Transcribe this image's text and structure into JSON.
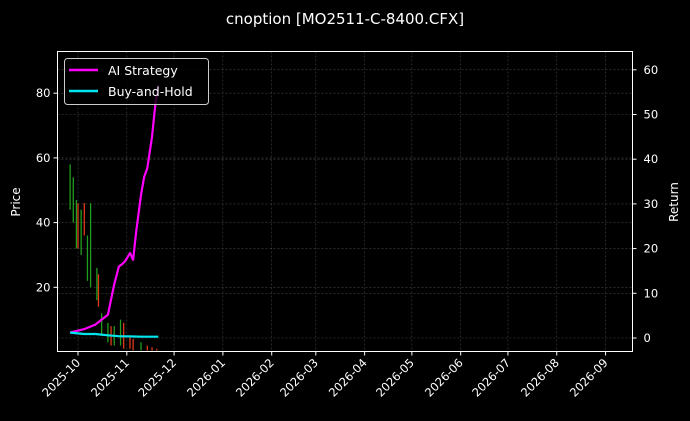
{
  "chart_data": {
    "type": "line",
    "title": "cnoption [MO2511-C-8400.CFX]",
    "xlabel": "",
    "ylabel": "Price",
    "ylabel_right": "Return",
    "x_ticks": [
      "2025-10",
      "2025-11",
      "2025-12",
      "2026-01",
      "2026-02",
      "2026-03",
      "2026-04",
      "2026-05",
      "2026-06",
      "2026-07",
      "2026-08",
      "2026-09"
    ],
    "y_ticks_left": [
      20,
      40,
      60,
      80
    ],
    "y_ticks_right": [
      0,
      10,
      20,
      30,
      40,
      50,
      60
    ],
    "ylim_left": [
      0,
      92
    ],
    "ylim_right": [
      -3,
      64
    ],
    "grid": true,
    "legend_position": "upper left",
    "legend": [
      "AI Strategy",
      "Buy-and-Hold"
    ],
    "colors": {
      "background": "#000000",
      "ai_strategy": "#ff00ff",
      "buy_and_hold": "#00e5ee",
      "candle_up": "#1f9e1f",
      "candle_down": "#e03a1a",
      "grid": "#444444",
      "axes": "#ffffff"
    },
    "series": [
      {
        "name": "AI Strategy",
        "axis": "right",
        "dates": [
          "2025-09-26",
          "2025-10-05",
          "2025-10-12",
          "2025-10-20",
          "2025-10-24",
          "2025-10-27",
          "2025-10-29",
          "2025-10-31",
          "2025-11-03",
          "2025-11-05",
          "2025-11-07",
          "2025-11-10",
          "2025-11-12",
          "2025-11-14",
          "2025-11-17",
          "2025-11-19",
          "2025-11-21"
        ],
        "values": [
          1.2,
          2.0,
          3.0,
          5.2,
          12.0,
          16.0,
          16.5,
          17.2,
          19.0,
          17.5,
          24.0,
          32.0,
          36.0,
          38.0,
          45.0,
          52.0,
          56.5
        ]
      },
      {
        "name": "Buy-and-Hold",
        "axis": "right",
        "dates": [
          "2025-09-26",
          "2025-10-05",
          "2025-10-12",
          "2025-10-20",
          "2025-10-27",
          "2025-11-03",
          "2025-11-10",
          "2025-11-17",
          "2025-11-21"
        ],
        "values": [
          1.2,
          0.9,
          0.9,
          0.6,
          0.4,
          0.35,
          0.3,
          0.3,
          0.3
        ]
      },
      {
        "name": "Price (candlesticks)",
        "axis": "left",
        "dates": [
          "2025-09-26",
          "2025-09-28",
          "2025-09-30",
          "2025-10-01",
          "2025-10-03",
          "2025-10-05",
          "2025-10-07",
          "2025-10-09",
          "2025-10-13",
          "2025-10-14",
          "2025-10-16",
          "2025-10-20",
          "2025-10-22",
          "2025-10-24",
          "2025-10-28",
          "2025-10-30",
          "2025-11-03",
          "2025-11-05",
          "2025-11-10",
          "2025-11-14",
          "2025-11-17",
          "2025-11-20"
        ],
        "high": [
          58,
          54,
          47,
          46,
          44,
          46,
          36,
          46,
          26,
          24,
          12,
          9,
          8,
          8,
          10,
          9,
          5,
          4,
          3,
          2,
          1.5,
          1
        ],
        "low": [
          44,
          40,
          32,
          32,
          30,
          36,
          22,
          20,
          16,
          14,
          5,
          3,
          2,
          2,
          2,
          1,
          1,
          0.5,
          0.5,
          0.3,
          0.2,
          0.1
        ],
        "direction": [
          "up",
          "up",
          "up",
          "down",
          "up",
          "down",
          "up",
          "up",
          "up",
          "down",
          "up",
          "up",
          "down",
          "up",
          "up",
          "down",
          "down",
          "down",
          "up",
          "down",
          "down",
          "down"
        ]
      }
    ]
  }
}
